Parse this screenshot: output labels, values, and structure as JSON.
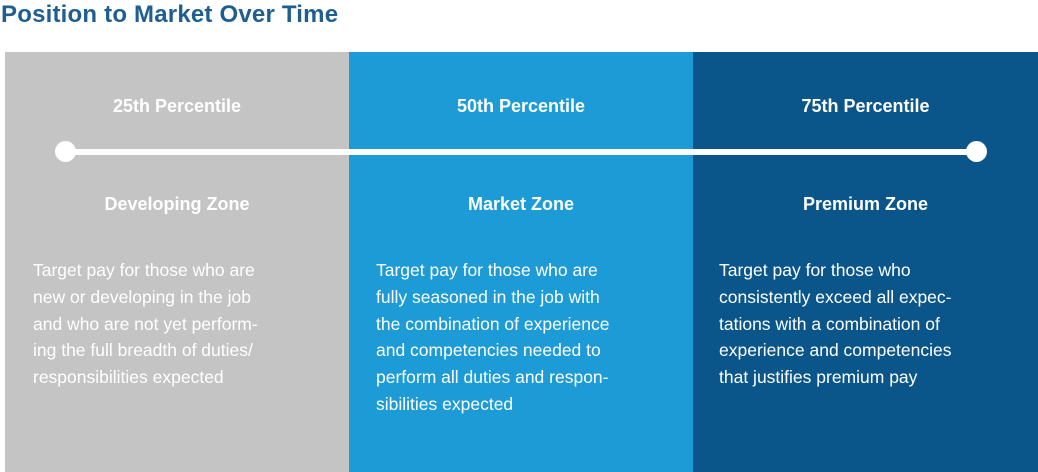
{
  "title": "Position to Market Over Time",
  "colors": {
    "title": "#1f5f8f",
    "developing": "#c4c4c4",
    "market": "#1d9bd7",
    "premium": "#0a568b"
  },
  "zones": [
    {
      "percentile": "25th Percentile",
      "name": "Developing Zone",
      "description": "Target pay for those who are\nnew or developing in the job\nand who are not yet perform-\ning the full breadth of duties/\nresponsibilities expected"
    },
    {
      "percentile": "50th Percentile",
      "name": "Market Zone",
      "description": "Target pay for those who are\nfully seasoned in the job with\nthe combination of experience\nand competencies needed to\nperform all duties and respon-\nsibilities expected"
    },
    {
      "percentile": "75th Percentile",
      "name": "Premium Zone",
      "description": "Target pay for those who\nconsistently exceed all expec-\ntations with a combination of\nexperience and competencies\nthat justifies premium pay"
    }
  ]
}
